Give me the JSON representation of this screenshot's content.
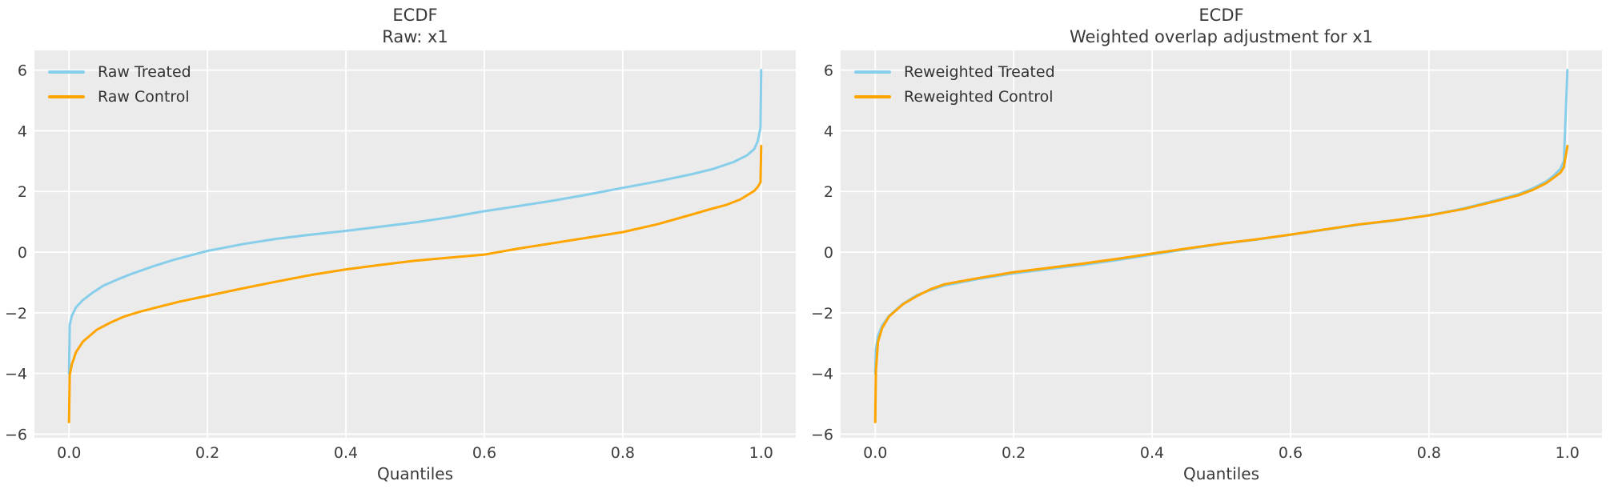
{
  "style": {
    "figure_bg": "#ffffff",
    "panel_bg": "#ebebeb",
    "grid_color": "#ffffff",
    "text_color": "#3a3a3a",
    "treated_color": "#87ceeb",
    "control_color": "#ffa500"
  },
  "chart_data": [
    {
      "type": "line",
      "title_lines": [
        "ECDF",
        "Raw: x1"
      ],
      "xlabel": "Quantiles",
      "legend_position": "upper left",
      "grid": true,
      "xlim": [
        -0.05,
        1.05
      ],
      "ylim": [
        -6.12,
        6.65
      ],
      "xticks": [
        0.0,
        0.2,
        0.4,
        0.6,
        0.8,
        1.0
      ],
      "xtick_labels": [
        "0.0",
        "0.2",
        "0.4",
        "0.6",
        "0.8",
        "1.0"
      ],
      "yticks": [
        6,
        4,
        2,
        0,
        -2,
        -4,
        -6
      ],
      "ytick_labels": [
        "6",
        "4",
        "2",
        "0",
        "−2",
        "−4",
        "−6"
      ],
      "series": [
        {
          "name": "Raw Treated",
          "color": "#87ceeb",
          "points": [
            [
              0,
              -4.0
            ],
            [
              0.001,
              -2.4
            ],
            [
              0.004,
              -2.1
            ],
            [
              0.01,
              -1.82
            ],
            [
              0.02,
              -1.58
            ],
            [
              0.035,
              -1.32
            ],
            [
              0.05,
              -1.1
            ],
            [
              0.07,
              -0.9
            ],
            [
              0.09,
              -0.72
            ],
            [
              0.12,
              -0.48
            ],
            [
              0.15,
              -0.26
            ],
            [
              0.18,
              -0.08
            ],
            [
              0.2,
              0.04
            ],
            [
              0.25,
              0.26
            ],
            [
              0.3,
              0.44
            ],
            [
              0.35,
              0.58
            ],
            [
              0.4,
              0.7
            ],
            [
              0.45,
              0.84
            ],
            [
              0.5,
              0.98
            ],
            [
              0.55,
              1.15
            ],
            [
              0.6,
              1.35
            ],
            [
              0.65,
              1.52
            ],
            [
              0.7,
              1.7
            ],
            [
              0.75,
              1.9
            ],
            [
              0.8,
              2.12
            ],
            [
              0.85,
              2.33
            ],
            [
              0.9,
              2.57
            ],
            [
              0.93,
              2.74
            ],
            [
              0.96,
              2.97
            ],
            [
              0.98,
              3.2
            ],
            [
              0.99,
              3.4
            ],
            [
              0.995,
              3.65
            ],
            [
              0.999,
              4.1
            ],
            [
              1.0,
              6.0
            ]
          ]
        },
        {
          "name": "Raw Control",
          "color": "#ffa500",
          "points": [
            [
              0,
              -5.6
            ],
            [
              0.001,
              -4.05
            ],
            [
              0.004,
              -3.7
            ],
            [
              0.01,
              -3.3
            ],
            [
              0.02,
              -2.95
            ],
            [
              0.04,
              -2.56
            ],
            [
              0.06,
              -2.32
            ],
            [
              0.08,
              -2.12
            ],
            [
              0.1,
              -1.98
            ],
            [
              0.13,
              -1.8
            ],
            [
              0.16,
              -1.63
            ],
            [
              0.2,
              -1.44
            ],
            [
              0.25,
              -1.2
            ],
            [
              0.3,
              -0.97
            ],
            [
              0.35,
              -0.75
            ],
            [
              0.4,
              -0.57
            ],
            [
              0.45,
              -0.42
            ],
            [
              0.5,
              -0.28
            ],
            [
              0.55,
              -0.18
            ],
            [
              0.6,
              -0.08
            ],
            [
              0.65,
              0.12
            ],
            [
              0.7,
              0.3
            ],
            [
              0.75,
              0.48
            ],
            [
              0.8,
              0.66
            ],
            [
              0.85,
              0.92
            ],
            [
              0.9,
              1.24
            ],
            [
              0.93,
              1.44
            ],
            [
              0.95,
              1.56
            ],
            [
              0.97,
              1.74
            ],
            [
              0.98,
              1.88
            ],
            [
              0.99,
              2.02
            ],
            [
              0.995,
              2.15
            ],
            [
              0.999,
              2.3
            ],
            [
              1.0,
              3.5
            ]
          ]
        }
      ]
    },
    {
      "type": "line",
      "title_lines": [
        "ECDF",
        "Weighted overlap adjustment for x1"
      ],
      "xlabel": "Quantiles",
      "legend_position": "upper left",
      "grid": true,
      "xlim": [
        -0.05,
        1.05
      ],
      "ylim": [
        -6.12,
        6.65
      ],
      "xticks": [
        0.0,
        0.2,
        0.4,
        0.6,
        0.8,
        1.0
      ],
      "xtick_labels": [
        "0.0",
        "0.2",
        "0.4",
        "0.6",
        "0.8",
        "1.0"
      ],
      "yticks": [
        6,
        4,
        2,
        0,
        -2,
        -4,
        -6
      ],
      "ytick_labels": [
        "6",
        "4",
        "2",
        "0",
        "−2",
        "−4",
        "−6"
      ],
      "series": [
        {
          "name": "Reweighted Treated",
          "color": "#87ceeb",
          "points": [
            [
              0,
              -4.0
            ],
            [
              0.001,
              -3.2
            ],
            [
              0.004,
              -2.75
            ],
            [
              0.01,
              -2.42
            ],
            [
              0.02,
              -2.1
            ],
            [
              0.04,
              -1.7
            ],
            [
              0.06,
              -1.42
            ],
            [
              0.08,
              -1.25
            ],
            [
              0.1,
              -1.1
            ],
            [
              0.15,
              -0.88
            ],
            [
              0.2,
              -0.7
            ],
            [
              0.25,
              -0.56
            ],
            [
              0.3,
              -0.42
            ],
            [
              0.35,
              -0.26
            ],
            [
              0.4,
              -0.08
            ],
            [
              0.45,
              0.1
            ],
            [
              0.5,
              0.27
            ],
            [
              0.55,
              0.41
            ],
            [
              0.6,
              0.57
            ],
            [
              0.65,
              0.74
            ],
            [
              0.7,
              0.91
            ],
            [
              0.75,
              1.04
            ],
            [
              0.8,
              1.22
            ],
            [
              0.85,
              1.44
            ],
            [
              0.9,
              1.73
            ],
            [
              0.93,
              1.92
            ],
            [
              0.95,
              2.1
            ],
            [
              0.97,
              2.34
            ],
            [
              0.98,
              2.52
            ],
            [
              0.99,
              2.75
            ],
            [
              0.995,
              3.0
            ],
            [
              1.0,
              6.0
            ]
          ]
        },
        {
          "name": "Reweighted Control",
          "color": "#ffa500",
          "points": [
            [
              0,
              -5.6
            ],
            [
              0.001,
              -3.9
            ],
            [
              0.004,
              -2.95
            ],
            [
              0.01,
              -2.5
            ],
            [
              0.02,
              -2.12
            ],
            [
              0.04,
              -1.72
            ],
            [
              0.06,
              -1.45
            ],
            [
              0.08,
              -1.22
            ],
            [
              0.1,
              -1.06
            ],
            [
              0.15,
              -0.85
            ],
            [
              0.2,
              -0.66
            ],
            [
              0.25,
              -0.52
            ],
            [
              0.3,
              -0.38
            ],
            [
              0.35,
              -0.22
            ],
            [
              0.4,
              -0.05
            ],
            [
              0.45,
              0.12
            ],
            [
              0.5,
              0.28
            ],
            [
              0.55,
              0.42
            ],
            [
              0.6,
              0.58
            ],
            [
              0.65,
              0.75
            ],
            [
              0.7,
              0.92
            ],
            [
              0.75,
              1.05
            ],
            [
              0.8,
              1.21
            ],
            [
              0.85,
              1.42
            ],
            [
              0.9,
              1.7
            ],
            [
              0.93,
              1.88
            ],
            [
              0.95,
              2.05
            ],
            [
              0.97,
              2.28
            ],
            [
              0.98,
              2.45
            ],
            [
              0.99,
              2.62
            ],
            [
              0.995,
              2.8
            ],
            [
              1.0,
              3.5
            ]
          ]
        }
      ]
    }
  ]
}
